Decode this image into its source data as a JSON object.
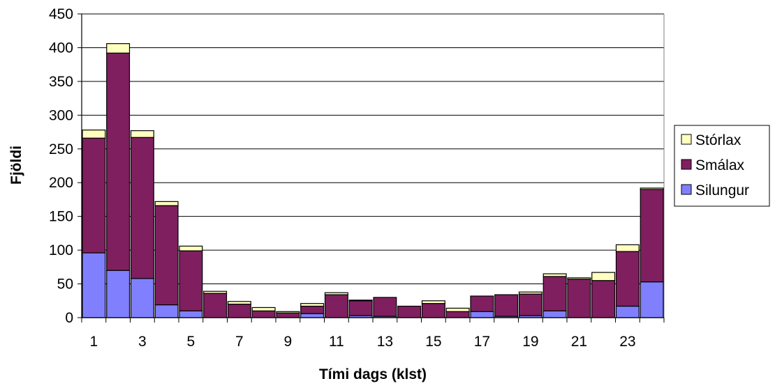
{
  "chart_data": {
    "type": "bar",
    "stacked": true,
    "title": "",
    "xlabel": "Tími dags (klst)",
    "ylabel": "Fjöldi",
    "ylim": [
      0,
      450
    ],
    "yticks": [
      0,
      50,
      100,
      150,
      200,
      250,
      300,
      350,
      400,
      450
    ],
    "categories": [
      "1",
      "2",
      "3",
      "4",
      "5",
      "6",
      "7",
      "8",
      "9",
      "10",
      "11",
      "12",
      "13",
      "14",
      "15",
      "16",
      "17",
      "18",
      "19",
      "20",
      "21",
      "22",
      "23",
      "24"
    ],
    "xtick_labels": [
      "1",
      "",
      "3",
      "",
      "5",
      "",
      "7",
      "",
      "9",
      "",
      "11",
      "",
      "13",
      "",
      "15",
      "",
      "17",
      "",
      "19",
      "",
      "21",
      "",
      "23",
      ""
    ],
    "grid": "horizontal",
    "legend_position": "right",
    "series": [
      {
        "name": "Silungur",
        "color": "#8080ff",
        "values": [
          96,
          70,
          58,
          19,
          10,
          0,
          0,
          0,
          0,
          6,
          0,
          3,
          2,
          0,
          0,
          0,
          9,
          2,
          3,
          10,
          0,
          0,
          17,
          53
        ]
      },
      {
        "name": "Smálax",
        "color": "#7f1f5f",
        "values": [
          170,
          322,
          209,
          147,
          89,
          36,
          20,
          10,
          7,
          11,
          34,
          22,
          28,
          17,
          21,
          9,
          23,
          32,
          32,
          51,
          57,
          55,
          81,
          137
        ]
      },
      {
        "name": "Stórlax",
        "color": "#ffffc0",
        "values": [
          12,
          14,
          10,
          6,
          7,
          3,
          4,
          5,
          2,
          4,
          3,
          1,
          0,
          0,
          4,
          5,
          0,
          0,
          3,
          4,
          2,
          12,
          10,
          2
        ]
      }
    ],
    "legend_order": [
      "Stórlax",
      "Smálax",
      "Silungur"
    ]
  }
}
